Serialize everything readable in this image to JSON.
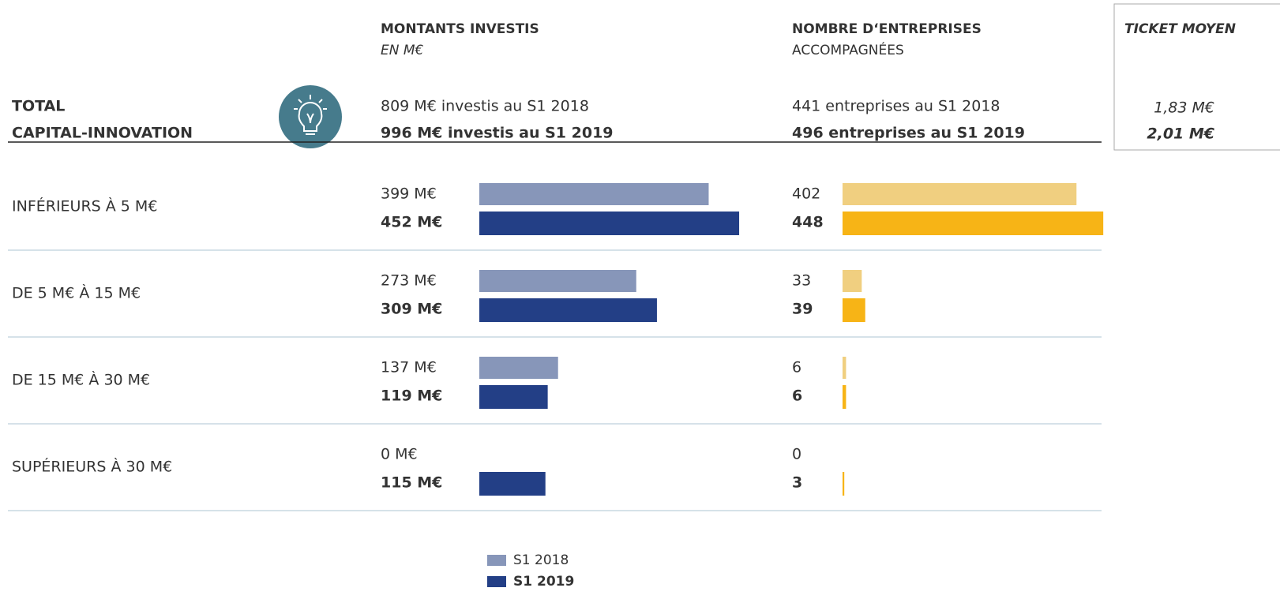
{
  "header": {
    "amounts_title": "MONTANTS INVESTIS",
    "amounts_subtitle": "EN M€",
    "companies_title": "NOMBRE D‘ENTREPRISES",
    "companies_subtitle": "ACCOMPAGNÉES",
    "ticket_title": "TICKET MOYEN"
  },
  "total": {
    "label": [
      "TOTAL",
      "CAPITAL-INNOVATION"
    ],
    "amounts": [
      "809 M€ investis au S1 2018",
      "996 M€ investis au S1 2019"
    ],
    "companies": [
      "441 entreprises au S1 2018",
      "496 entreprises au S1 2019"
    ],
    "ticket": [
      "1,83 M€",
      "2,01 M€"
    ]
  },
  "rows": [
    {
      "label": "INFÉRIEURS À 5 M€",
      "amounts": {
        "values": [
          399,
          452
        ],
        "value_labels": [
          "399 M€",
          "452 M€"
        ]
      },
      "companies": {
        "values": [
          402,
          448
        ]
      }
    },
    {
      "label": "DE 5 M€ À 15 M€",
      "amounts": {
        "values": [
          273,
          309
        ],
        "value_labels": [
          "273 M€",
          "309 M€"
        ]
      },
      "companies": {
        "values": [
          33,
          39
        ]
      }
    },
    {
      "label": "DE 15 M€ À 30 M€",
      "amounts": {
        "values": [
          137,
          119
        ],
        "value_labels": [
          "137 M€",
          "119 M€"
        ]
      },
      "companies": {
        "values": [
          6,
          6
        ]
      }
    },
    {
      "label": "SUPÉRIEURS À 30 M€",
      "amounts": {
        "values": [
          0,
          115
        ],
        "value_labels": [
          "0 M€",
          "115 M€"
        ]
      },
      "companies": {
        "values": [
          0,
          3
        ]
      }
    }
  ],
  "colors": {
    "amounts": [
      "#8796b9",
      "#233f86"
    ],
    "companies": [
      "#f0cf80",
      "#f7b416"
    ]
  },
  "legend": [
    "S1 2018",
    "S1 2019"
  ]
}
